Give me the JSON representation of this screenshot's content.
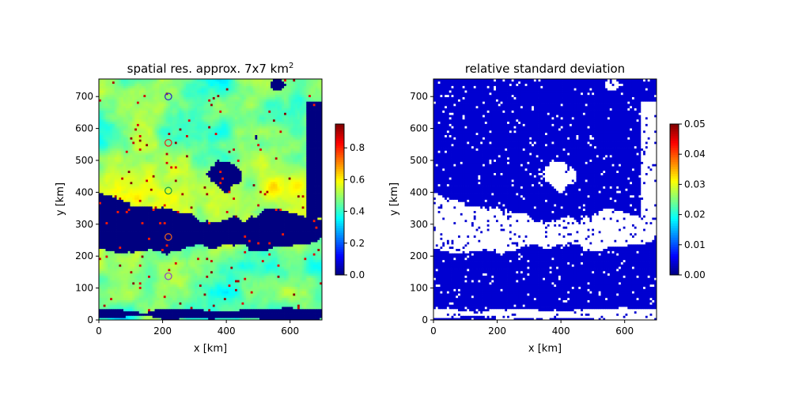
{
  "chart_data": [
    {
      "type": "heatmap",
      "title": "spatial res. approx. 7x7 km",
      "title_superscript": "2",
      "xlabel": "x [km]",
      "ylabel": "y [km]",
      "xlim": [
        0,
        700
      ],
      "ylim": [
        0,
        755
      ],
      "xticks": [
        "0",
        "200",
        "400",
        "600"
      ],
      "yticks": [
        "0",
        "100",
        "200",
        "300",
        "400",
        "500",
        "600",
        "700"
      ],
      "colormap": "jet",
      "colorbar": {
        "min": 0.0,
        "max": 0.95,
        "ticks": [
          "0.0",
          "0.2",
          "0.4",
          "0.6",
          "0.8"
        ]
      },
      "markers": [
        {
          "x": 218,
          "y": 700,
          "color": "#3030c0"
        },
        {
          "x": 218,
          "y": 555,
          "color": "#e03020"
        },
        {
          "x": 218,
          "y": 405,
          "color": "#20a040"
        },
        {
          "x": 218,
          "y": 260,
          "color": "#e06020"
        },
        {
          "x": 218,
          "y": 137,
          "color": "#9050c0"
        }
      ],
      "grid": false
    },
    {
      "type": "heatmap",
      "title": "relative standard deviation",
      "xlabel": "x [km]",
      "ylabel": "y [km]",
      "xlim": [
        0,
        700
      ],
      "ylim": [
        0,
        755
      ],
      "xticks": [
        "0",
        "200",
        "400",
        "600"
      ],
      "yticks": [
        "0",
        "100",
        "200",
        "300",
        "400",
        "500",
        "600",
        "700"
      ],
      "colormap": "jet",
      "colorbar": {
        "min": 0.0,
        "max": 0.05,
        "ticks": [
          "0.00",
          "0.01",
          "0.02",
          "0.03",
          "0.04",
          "0.05"
        ]
      },
      "grid": false
    }
  ]
}
